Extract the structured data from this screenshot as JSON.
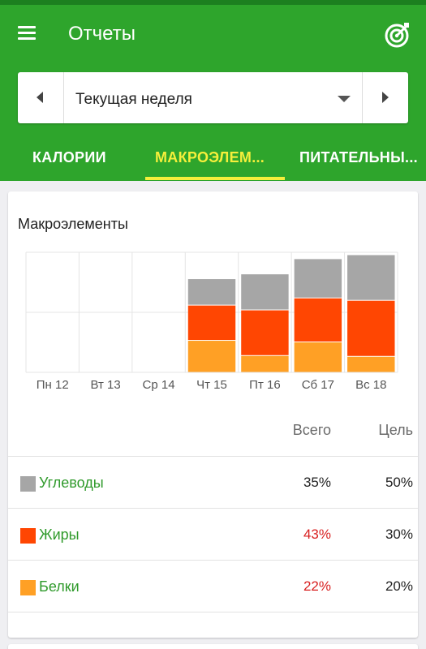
{
  "app": {
    "title": "Отчеты"
  },
  "week_selector": {
    "value": "Текущая неделя"
  },
  "tabs": [
    {
      "label": "КАЛОРИИ"
    },
    {
      "label": "МАКРОЭЛЕМ..."
    },
    {
      "label": "ПИТАТЕЛЬНЫ..."
    }
  ],
  "card": {
    "title": "Макроэлементы",
    "col_total": "Всего",
    "col_goal": "Цель"
  },
  "macros": [
    {
      "label": "Углеводы",
      "total": "35%",
      "goal": "50%",
      "color": "#a6a6a6",
      "over": false
    },
    {
      "label": "Жиры",
      "total": "43%",
      "goal": "30%",
      "color": "#ff4602",
      "over": true
    },
    {
      "label": "Белки",
      "total": "22%",
      "goal": "20%",
      "color": "#ffa025",
      "over": true
    }
  ],
  "chart_data": {
    "type": "bar",
    "stacked": true,
    "categories": [
      "Пн 12",
      "Вт 13",
      "Ср 14",
      "Чт 15",
      "Пт 16",
      "Сб 17",
      "Вс 18"
    ],
    "series": [
      {
        "name": "Белки",
        "color": "#ffa025",
        "values": [
          0,
          0,
          0,
          40,
          21,
          38,
          20
        ]
      },
      {
        "name": "Жиры",
        "color": "#ff4602",
        "values": [
          0,
          0,
          0,
          44,
          57,
          55,
          70
        ]
      },
      {
        "name": "Углеводы",
        "color": "#a6a6a6",
        "values": [
          0,
          0,
          0,
          33,
          45,
          49,
          57
        ]
      }
    ],
    "ylim": [
      0,
      150
    ],
    "grid": true,
    "legend": "none"
  }
}
